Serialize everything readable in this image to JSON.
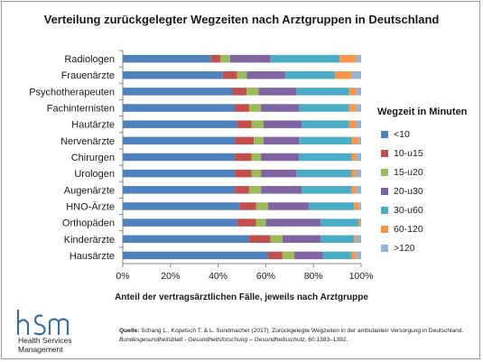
{
  "title": "Verteilung zurückgelegter Wegzeiten nach Arztgruppen in Deutschland",
  "x_axis_label": "Anteil der vertragsärztlichen  Fälle, jeweils nach Arztgruppe",
  "legend_title": "Wegzeit in Minuten",
  "logo": {
    "letters": "hsm",
    "line1": "Health Services",
    "line2": "Management"
  },
  "source": {
    "label": "Quelle:",
    "text1": " Schang L., Kopetsch T. & L. Sundmacher (2017). Zurückgelegte Wegzeiten in der ambulanten Versorgung in Deutschland. ",
    "journal": "Bundesgesundheitsblatt - Gesundheitsforschung  – Gesundheitsschutz",
    "text2": ", 60:1383–1392."
  },
  "colors": {
    "lt10": "#4f81bd",
    "10-u15": "#c0504d",
    "15-u20": "#9bbb59",
    "20-u30": "#8064a2",
    "30-u60": "#4bacc6",
    "60-120": "#f79646",
    "gt120": "#95b3d7"
  },
  "chart_data": {
    "type": "bar",
    "orientation": "horizontal",
    "stacked": true,
    "percent": true,
    "xlim": [
      0,
      100
    ],
    "xticks": [
      "0%",
      "20%",
      "40%",
      "60%",
      "80%",
      "100%"
    ],
    "grid": false,
    "legend_position": "right",
    "categories": [
      "Radiologen",
      "Frauenärzte",
      "Psychotherapeuten",
      "Fachinternisten",
      "Hautärzte",
      "Nervenärzte",
      "Chirurgen",
      "Urologen",
      "Augenärzte",
      "HNO-Ärzte",
      "Orthopäden",
      "Kinderärzte",
      "Hausärzte"
    ],
    "series": [
      {
        "name": "<10",
        "values": [
          37,
          42,
          46,
          47,
          48,
          47,
          47,
          47,
          47,
          49,
          48,
          53,
          61
        ]
      },
      {
        "name": "10-u15",
        "values": [
          4,
          6,
          6,
          6,
          6,
          8,
          7,
          7,
          6,
          7,
          8,
          9,
          6
        ]
      },
      {
        "name": "15-u20",
        "values": [
          4,
          4,
          5,
          5,
          5,
          4,
          4,
          4,
          5,
          5,
          4,
          5,
          5
        ]
      },
      {
        "name": "20-u30",
        "values": [
          17,
          16,
          16,
          16,
          16,
          15,
          16,
          15,
          17,
          17,
          23,
          16,
          12
        ]
      },
      {
        "name": "30-u60",
        "values": [
          29,
          21,
          22,
          21,
          20,
          22,
          22,
          23,
          21,
          19,
          16,
          14,
          12
        ]
      },
      {
        "name": "60-120",
        "values": [
          7,
          7,
          3,
          3,
          3,
          3,
          2,
          2,
          2,
          2,
          1,
          1,
          2
        ]
      },
      {
        "name": ">120",
        "values": [
          2,
          4,
          2,
          2,
          2,
          1,
          2,
          2,
          2,
          1,
          0,
          2,
          2
        ]
      }
    ]
  }
}
